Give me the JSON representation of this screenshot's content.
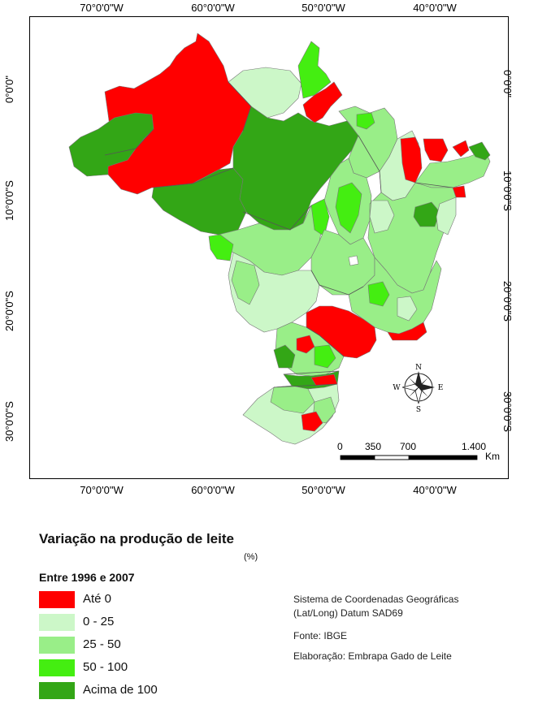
{
  "map": {
    "title": "Variação na produção de leite",
    "unit": "(%)",
    "subtitle": "Entre 1996 e 2007",
    "longitude_ticks": [
      "70°0'0\"W",
      "60°0'0\"W",
      "50°0'0\"W",
      "40°0'0\"W"
    ],
    "latitude_ticks": [
      "0°0'0\"",
      "10°0'0\"S",
      "20°0'0\"S",
      "30°0'0\"S"
    ],
    "legend": [
      {
        "label": "Até 0",
        "color": "#ff0000"
      },
      {
        "label": "0 - 25",
        "color": "#ccf7c8"
      },
      {
        "label": "25 - 50",
        "color": "#99ee88"
      },
      {
        "label": "50 - 100",
        "color": "#44ee11"
      },
      {
        "label": "Acima de 100",
        "color": "#33a616"
      }
    ],
    "scale_bar": {
      "labels": [
        "0",
        "350",
        "700",
        "1.400"
      ],
      "unit": "Km"
    },
    "compass": {
      "n": "N",
      "s": "S",
      "e": "E",
      "w": "W"
    },
    "info": {
      "coord_line1": "Sistema de Coordenadas Geográficas",
      "coord_line2": "(Lat/Long) Datum SAD69",
      "source": "Fonte: IBGE",
      "author": "Elaboração: Embrapa Gado de Leite"
    }
  }
}
